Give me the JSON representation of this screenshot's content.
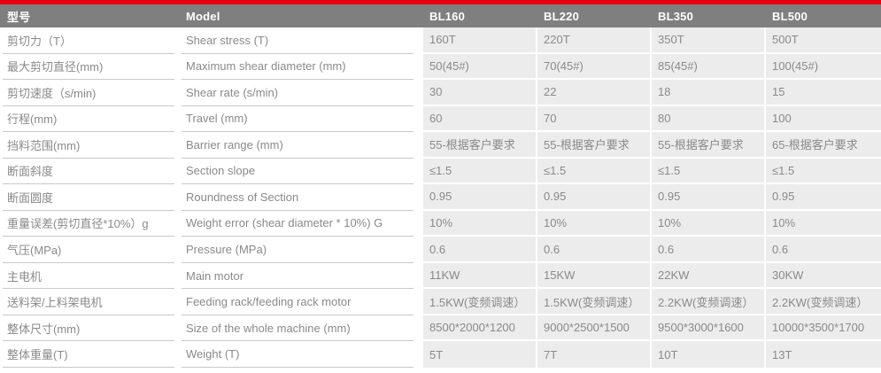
{
  "colors": {
    "accent_red": "#e60012",
    "header_bg": "#7f7f7f",
    "header_text": "#ffffff",
    "value_cell_bg": "#ececec",
    "body_text": "#8a8a8a",
    "underline": "#c8c8c8"
  },
  "table": {
    "header": {
      "col_zh": "型号",
      "col_en": "Model",
      "models": [
        "BL160",
        "BL220",
        "BL350",
        "BL500"
      ]
    },
    "rows": [
      {
        "zh": "剪切力（T）",
        "en": "Shear stress (T)",
        "values": [
          "160T",
          "220T",
          "350T",
          "500T"
        ]
      },
      {
        "zh": "最大剪切直径(mm)",
        "en": "Maximum shear diameter (mm)",
        "values": [
          "50(45#)",
          "70(45#)",
          "85(45#)",
          "100(45#)"
        ]
      },
      {
        "zh": "剪切速度（s/min)",
        "en": "Shear rate (s/min)",
        "values": [
          "30",
          "22",
          "18",
          "15"
        ]
      },
      {
        "zh": "行程(mm)",
        "en": "Travel (mm)",
        "values": [
          "60",
          "70",
          "80",
          "100"
        ]
      },
      {
        "zh": "挡料范围(mm)",
        "en": "Barrier range (mm)",
        "values": [
          "55-根据客户要求",
          "55-根据客户要求",
          "55-根据客户要求",
          "65-根据客户要求"
        ]
      },
      {
        "zh": "断面斜度",
        "en": "Section slope",
        "values": [
          "≤1.5",
          "≤1.5",
          "≤1.5",
          "≤1.5"
        ]
      },
      {
        "zh": "断面圆度",
        "en": "Roundness of Section",
        "values": [
          "0.95",
          "0.95",
          "0.95",
          "0.95"
        ]
      },
      {
        "zh": "重量误差(剪切直径*10%）g",
        "en": "Weight error (shear diameter * 10%) G",
        "values": [
          "10%",
          "10%",
          "10%",
          "10%"
        ]
      },
      {
        "zh": "气压(MPa)",
        "en": "Pressure (MPa)",
        "values": [
          "0.6",
          "0.6",
          "0.6",
          "0.6"
        ]
      },
      {
        "zh": "主电机",
        "en": "Main motor",
        "values": [
          "11KW",
          "15KW",
          "22KW",
          "30KW"
        ]
      },
      {
        "zh": "送料架/上料架电机",
        "en": "Feeding rack/feeding rack motor",
        "values": [
          "1.5KW(变频调速）",
          "1.5KW(变频调速）",
          "2.2KW(变频调速）",
          "2.2KW(变频调速）"
        ]
      },
      {
        "zh": "整体尺寸(mm)",
        "en": "Size of the whole machine (mm)",
        "values": [
          "8500*2000*1200",
          "9000*2500*1500",
          "9500*3000*1600",
          "10000*3500*1700"
        ]
      },
      {
        "zh": "整体重量(T)",
        "en": "Weight (T)",
        "values": [
          "5T",
          "7T",
          "10T",
          "13T"
        ]
      }
    ]
  }
}
